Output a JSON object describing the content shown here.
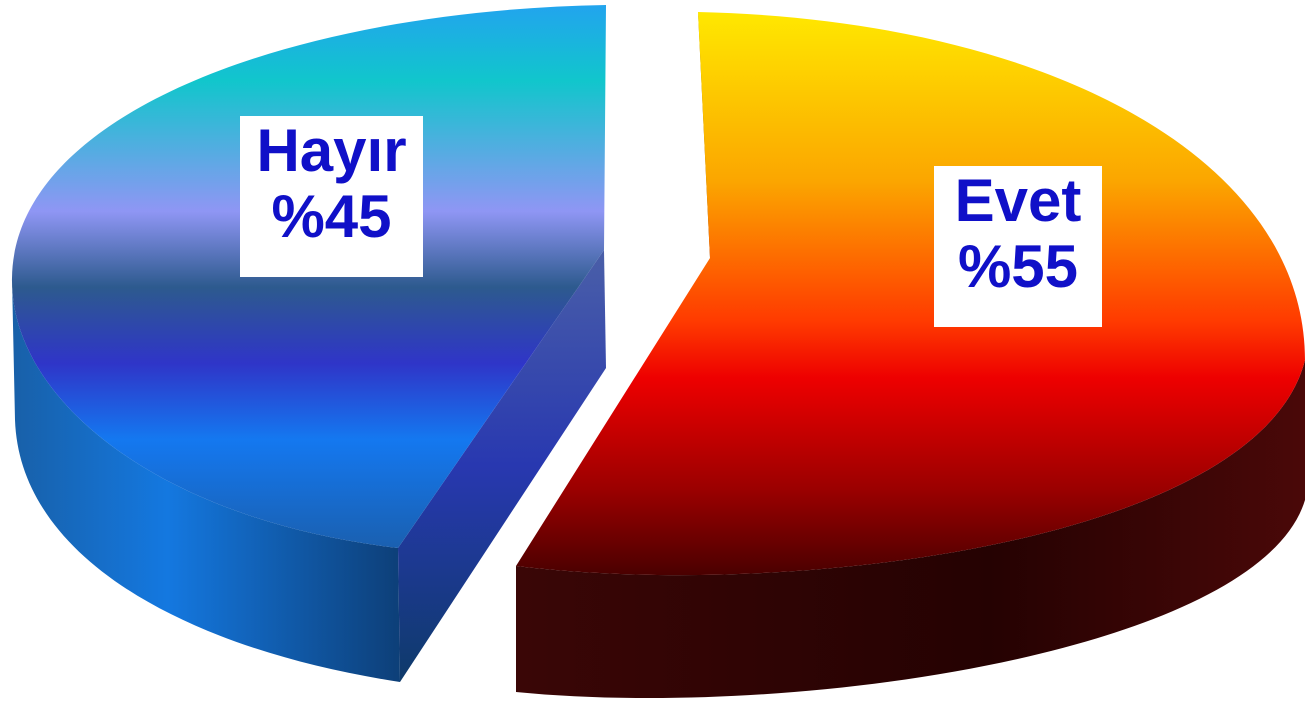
{
  "chart_data": {
    "type": "pie",
    "style": "3d-exploded",
    "title": "",
    "slices": [
      {
        "category": "Hayır",
        "percent_label": "%45",
        "value": 45,
        "gradient": [
          "#22a4ee",
          "#11c6cc",
          "#8f96f4",
          "#2d5a8e",
          "#2f35c8",
          "#1478f0",
          "#1a60b0"
        ],
        "side_color": "#0d3f78"
      },
      {
        "category": "Evet",
        "percent_label": "%55",
        "value": 55,
        "gradient": [
          "#ffe800",
          "#fba600",
          "#ff3a00",
          "#ee0000",
          "#9a0000",
          "#4a0000"
        ],
        "side_color": "#2a0303"
      }
    ],
    "label_text_color": "#1010c8",
    "label_background": "#ffffff"
  }
}
